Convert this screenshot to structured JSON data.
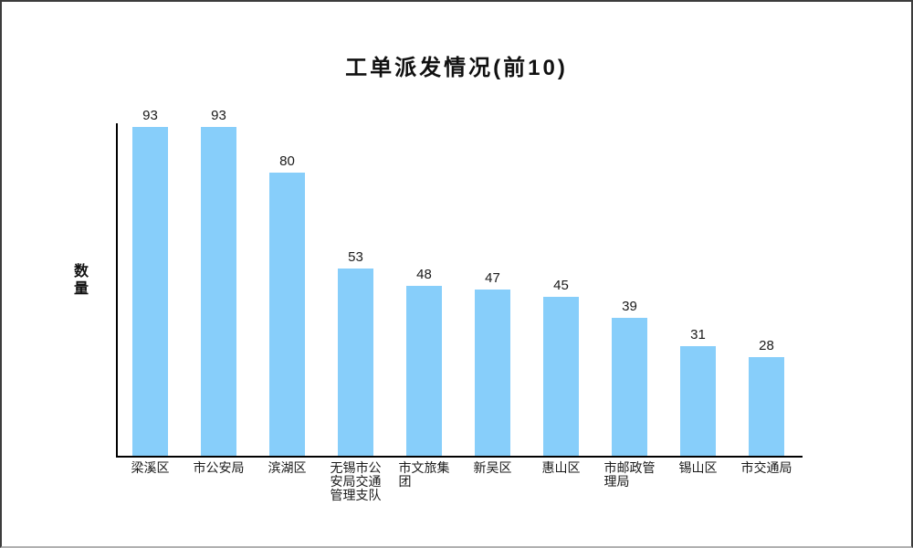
{
  "window": {
    "background": "#ffffff",
    "border_color_dark": "#3c3c3c",
    "border_color_light": "#b0b0b0"
  },
  "chart_data": {
    "type": "bar",
    "title": "工单派发情况(前10)",
    "xlabel": "",
    "ylabel": "数量",
    "categories": [
      "梁溪区",
      "市公安局",
      "滨湖区",
      "无锡市公安局交通管理支队",
      "市文旅集团",
      "新吴区",
      "惠山区",
      "市邮政管理局",
      "锡山区",
      "市交通局"
    ],
    "xtick_labels": [
      "梁溪区",
      "市公安局",
      "滨湖区",
      "无锡市公\n安局交通\n管理支队",
      "市文旅集\n团",
      "新吴区",
      "惠山区",
      "市邮政管\n理局",
      "锡山区",
      "市交通局"
    ],
    "values": [
      93,
      93,
      80,
      53,
      48,
      47,
      45,
      39,
      31,
      28
    ],
    "data_labels": [
      "93",
      "93",
      "80",
      "53",
      "48",
      "47",
      "45",
      "39",
      "31",
      "28"
    ],
    "ylim": [
      0,
      94
    ],
    "grid": false,
    "legend": "none",
    "bar_color": "#87CEFA",
    "axis_color": "#000000",
    "text_color": "#1a1a1a"
  }
}
